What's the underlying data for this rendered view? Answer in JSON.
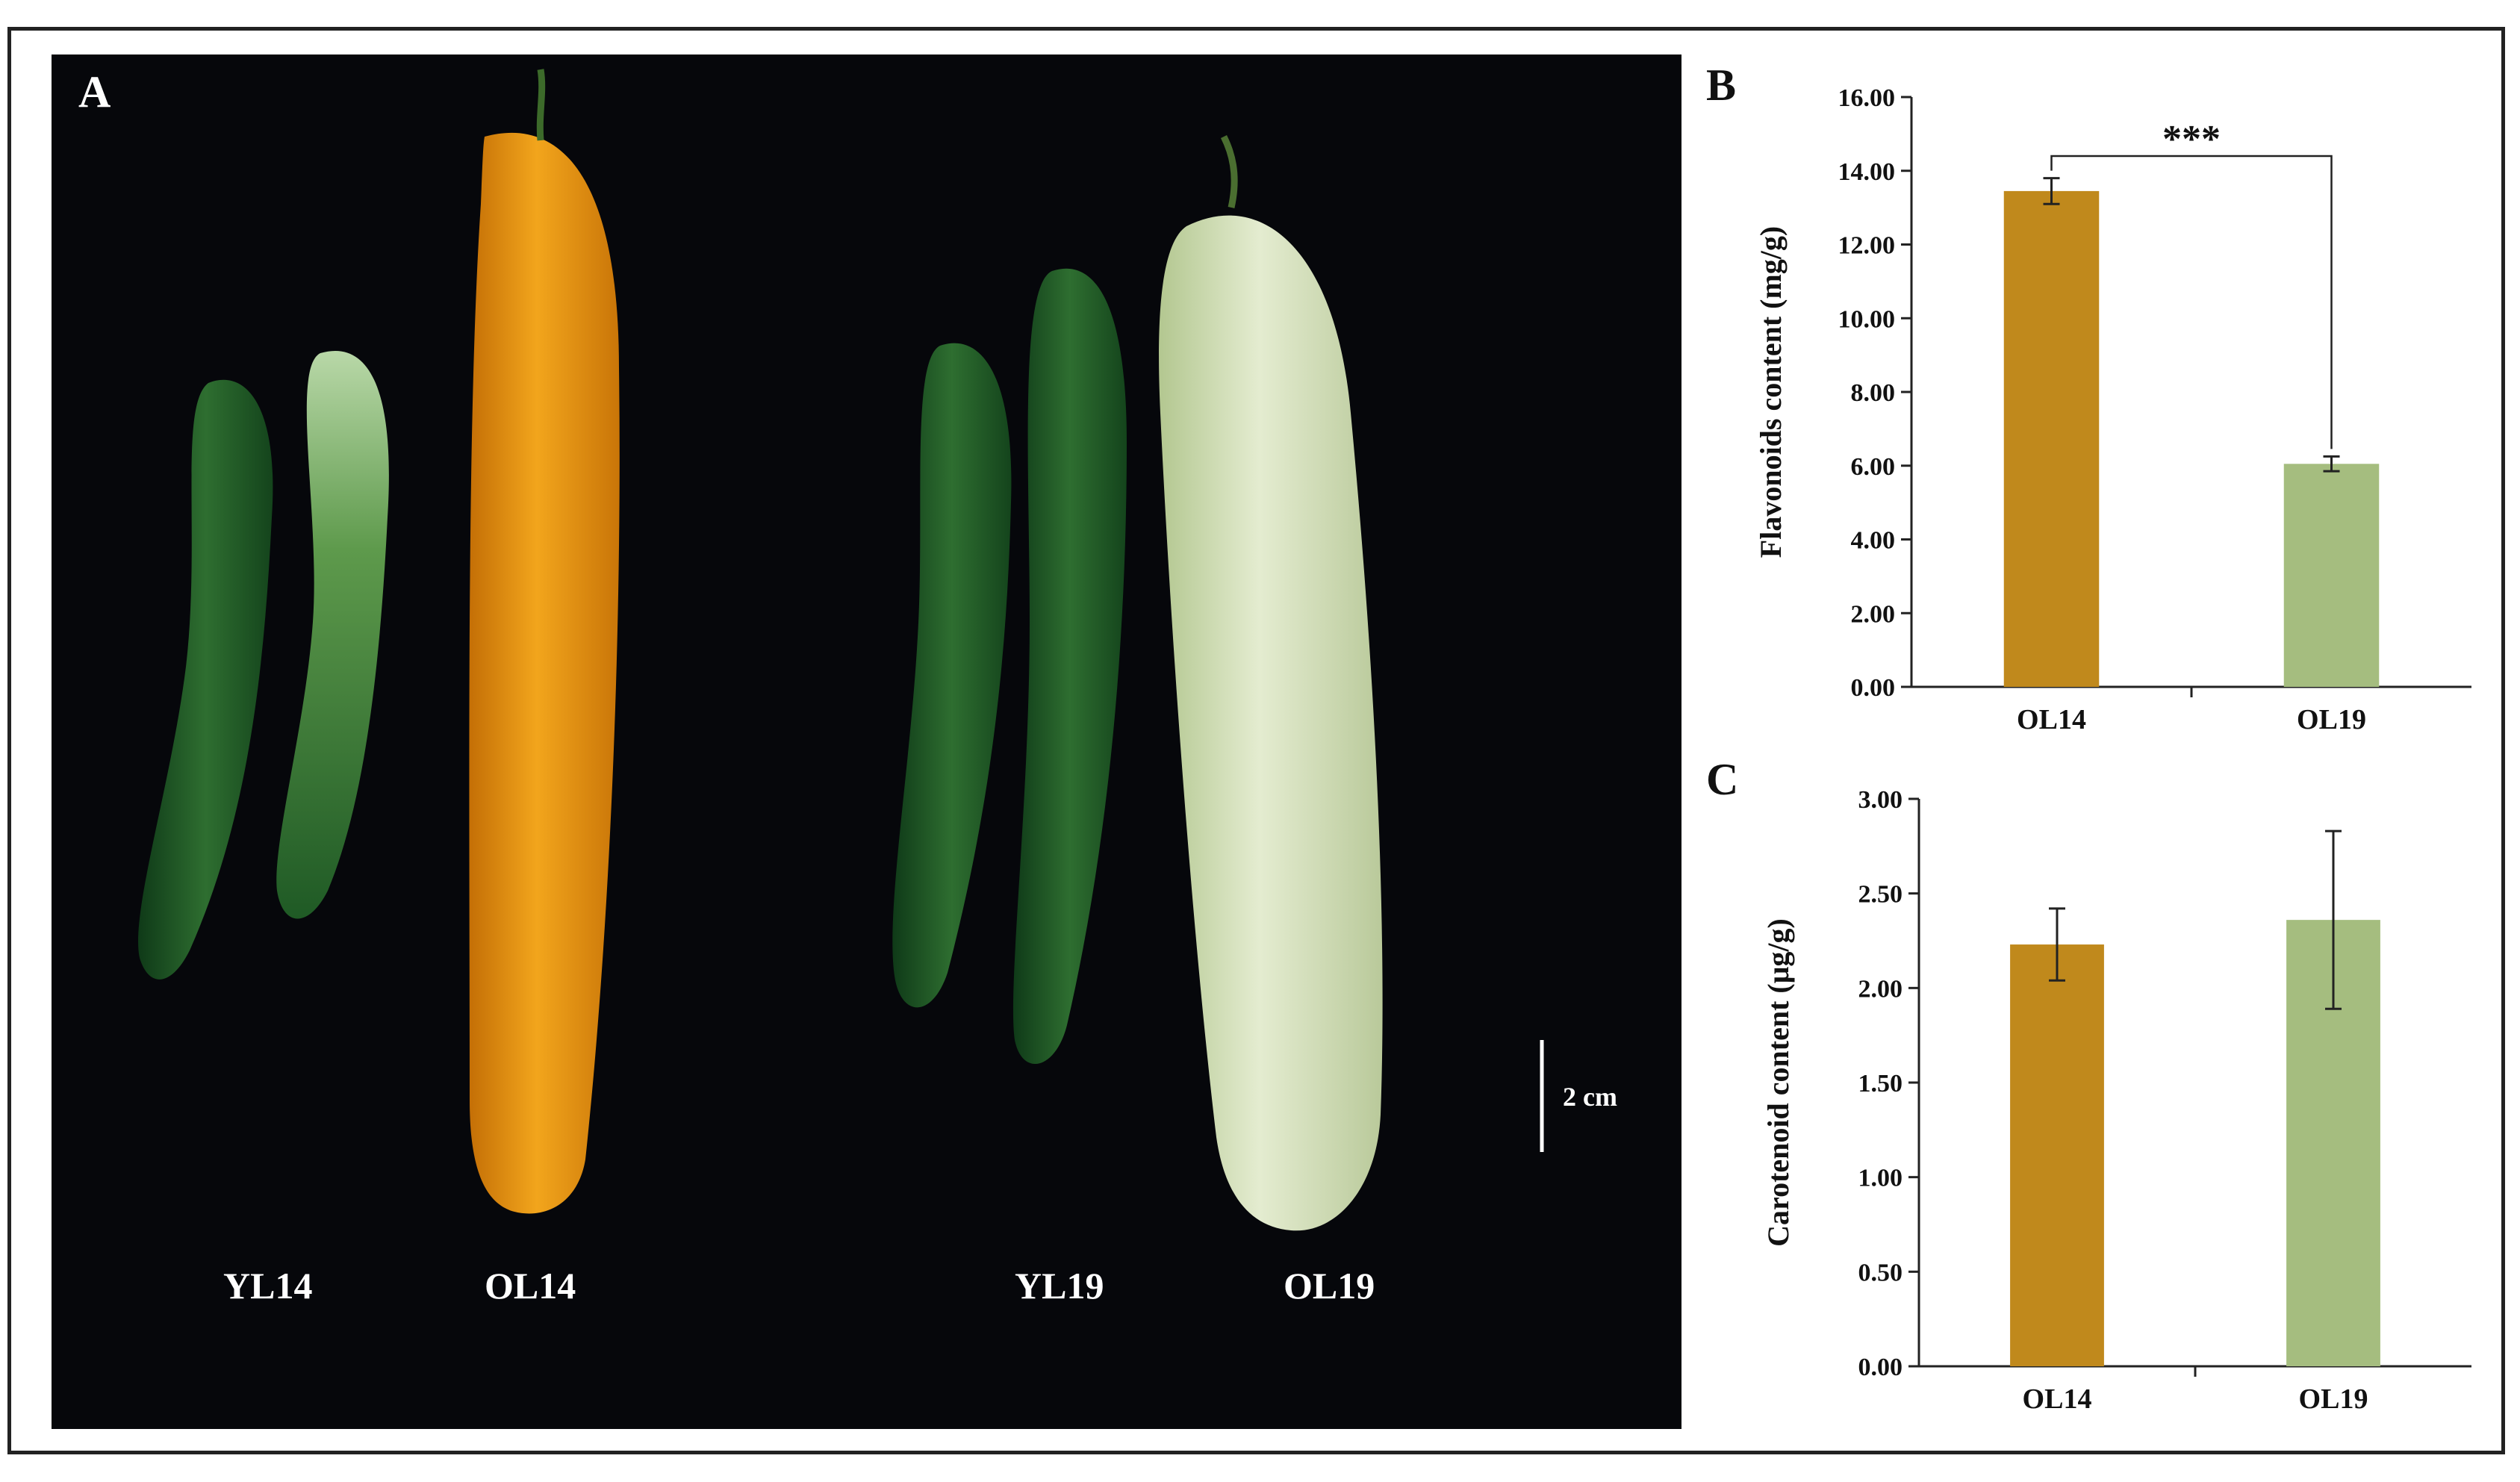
{
  "figure": {
    "panel_a": {
      "letter": "A",
      "fruit_labels": [
        "YL14",
        "OL14",
        "YL19",
        "OL19"
      ],
      "scale_bar_label": "2 cm",
      "colors": {
        "background": "#06070b",
        "young_fruit_dark": "#1f5a2a",
        "young_fruit_light": "#6fa65c",
        "ol14_fruit": "#e39a12",
        "ol19_fruit": "#d4e2b6"
      }
    },
    "panel_b": {
      "letter": "B"
    },
    "panel_c": {
      "letter": "C"
    }
  },
  "chart_data": [
    {
      "type": "bar",
      "panel": "B",
      "categories": [
        "OL14",
        "OL19"
      ],
      "values": [
        13.45,
        6.05
      ],
      "errors": [
        0.35,
        0.2
      ],
      "colors": [
        "#c0891c",
        "#a5bd7f"
      ],
      "ylabel": "Flavonoids content (mg/g)",
      "xlabel": "",
      "ylim": [
        0,
        16
      ],
      "yticks": [
        "0.00",
        "2.00",
        "4.00",
        "6.00",
        "8.00",
        "10.00",
        "12.00",
        "14.00",
        "16.00"
      ],
      "grid": false,
      "annotation": {
        "text": "***",
        "between": [
          "OL14",
          "OL19"
        ]
      }
    },
    {
      "type": "bar",
      "panel": "C",
      "categories": [
        "OL14",
        "OL19"
      ],
      "values": [
        2.23,
        2.36
      ],
      "errors": [
        0.19,
        0.47
      ],
      "colors": [
        "#c0891c",
        "#a5bd7f"
      ],
      "ylabel": "Carotenoid content (μg/g)",
      "xlabel": "",
      "ylim": [
        0,
        3
      ],
      "yticks": [
        "0.00",
        "0.50",
        "1.00",
        "1.50",
        "2.00",
        "2.50",
        "3.00"
      ],
      "grid": false
    }
  ]
}
